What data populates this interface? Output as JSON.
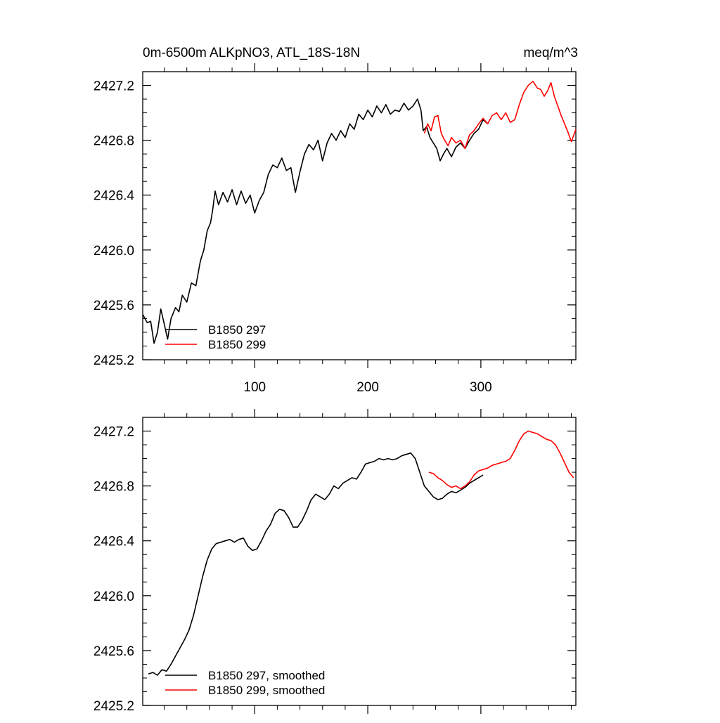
{
  "chart_data": [
    {
      "type": "line",
      "title": "0m-6500m ALKpNO3, ATL_18S-18N",
      "units": "meq/m^3",
      "xlabel": "",
      "ylabel": "",
      "xlim": [
        1,
        384
      ],
      "ylim": [
        2425.2,
        2427.3
      ],
      "x_ticks": [
        100,
        200,
        300
      ],
      "x_tick_labels": [
        "100",
        "200",
        "300"
      ],
      "y_ticks": [
        2425.2,
        2425.6,
        2426.0,
        2426.4,
        2426.8,
        2427.2
      ],
      "y_tick_labels": [
        "2425.2",
        "2425.6",
        "2426.0",
        "2426.4",
        "2426.8",
        "2427.2"
      ],
      "legend_position": "bottom-left",
      "series": [
        {
          "name": "B1850 297",
          "color": "#000000",
          "points": [
            [
              1,
              2425.53
            ],
            [
              5,
              2425.47
            ],
            [
              8,
              2425.48
            ],
            [
              11,
              2425.32
            ],
            [
              14,
              2425.4
            ],
            [
              17,
              2425.57
            ],
            [
              20,
              2425.46
            ],
            [
              23,
              2425.35
            ],
            [
              26,
              2425.5
            ],
            [
              30,
              2425.58
            ],
            [
              33,
              2425.55
            ],
            [
              36,
              2425.67
            ],
            [
              40,
              2425.62
            ],
            [
              44,
              2425.76
            ],
            [
              48,
              2425.74
            ],
            [
              52,
              2425.92
            ],
            [
              55,
              2426.0
            ],
            [
              58,
              2426.14
            ],
            [
              61,
              2426.2
            ],
            [
              63,
              2426.3
            ],
            [
              65,
              2426.43
            ],
            [
              68,
              2426.33
            ],
            [
              72,
              2426.42
            ],
            [
              76,
              2426.35
            ],
            [
              80,
              2426.44
            ],
            [
              84,
              2426.33
            ],
            [
              88,
              2426.43
            ],
            [
              92,
              2426.34
            ],
            [
              96,
              2426.4
            ],
            [
              100,
              2426.27
            ],
            [
              104,
              2426.36
            ],
            [
              108,
              2426.42
            ],
            [
              112,
              2426.55
            ],
            [
              116,
              2426.62
            ],
            [
              120,
              2426.6
            ],
            [
              124,
              2426.67
            ],
            [
              128,
              2426.58
            ],
            [
              132,
              2426.6
            ],
            [
              136,
              2426.42
            ],
            [
              140,
              2426.57
            ],
            [
              144,
              2426.7
            ],
            [
              148,
              2426.77
            ],
            [
              152,
              2426.73
            ],
            [
              156,
              2426.8
            ],
            [
              160,
              2426.65
            ],
            [
              164,
              2426.78
            ],
            [
              168,
              2426.85
            ],
            [
              172,
              2426.8
            ],
            [
              176,
              2426.87
            ],
            [
              180,
              2426.82
            ],
            [
              184,
              2426.92
            ],
            [
              188,
              2426.88
            ],
            [
              192,
              2426.99
            ],
            [
              196,
              2426.95
            ],
            [
              200,
              2427.02
            ],
            [
              204,
              2426.97
            ],
            [
              208,
              2427.05
            ],
            [
              212,
              2427.0
            ],
            [
              216,
              2427.06
            ],
            [
              220,
              2426.99
            ],
            [
              224,
              2427.02
            ],
            [
              228,
              2427.01
            ],
            [
              232,
              2427.07
            ],
            [
              236,
              2427.02
            ],
            [
              240,
              2427.05
            ],
            [
              244,
              2427.1
            ],
            [
              247,
              2427.02
            ],
            [
              249,
              2426.87
            ],
            [
              252,
              2426.9
            ],
            [
              255,
              2426.82
            ],
            [
              258,
              2426.78
            ],
            [
              261,
              2426.74
            ],
            [
              264,
              2426.65
            ],
            [
              267,
              2426.7
            ],
            [
              270,
              2426.74
            ],
            [
              274,
              2426.68
            ],
            [
              278,
              2426.75
            ],
            [
              282,
              2426.78
            ],
            [
              286,
              2426.74
            ],
            [
              290,
              2426.8
            ],
            [
              294,
              2426.85
            ],
            [
              298,
              2426.88
            ],
            [
              302,
              2426.95
            ],
            [
              306,
              2426.92
            ]
          ]
        },
        {
          "name": "B1850 299",
          "color": "#ff0000",
          "points": [
            [
              250,
              2426.85
            ],
            [
              253,
              2426.92
            ],
            [
              256,
              2426.87
            ],
            [
              259,
              2426.97
            ],
            [
              262,
              2426.98
            ],
            [
              265,
              2426.85
            ],
            [
              268,
              2426.8
            ],
            [
              271,
              2426.76
            ],
            [
              274,
              2426.82
            ],
            [
              278,
              2426.78
            ],
            [
              282,
              2426.8
            ],
            [
              286,
              2426.74
            ],
            [
              290,
              2426.84
            ],
            [
              294,
              2426.87
            ],
            [
              298,
              2426.92
            ],
            [
              302,
              2426.96
            ],
            [
              306,
              2426.92
            ],
            [
              310,
              2426.98
            ],
            [
              314,
              2427.0
            ],
            [
              318,
              2426.95
            ],
            [
              322,
              2427.0
            ],
            [
              326,
              2426.93
            ],
            [
              330,
              2426.95
            ],
            [
              334,
              2427.06
            ],
            [
              338,
              2427.15
            ],
            [
              342,
              2427.2
            ],
            [
              346,
              2427.23
            ],
            [
              350,
              2427.18
            ],
            [
              353,
              2427.17
            ],
            [
              356,
              2427.12
            ],
            [
              359,
              2427.16
            ],
            [
              362,
              2427.22
            ],
            [
              365,
              2427.12
            ],
            [
              368,
              2427.05
            ],
            [
              371,
              2426.98
            ],
            [
              374,
              2426.92
            ],
            [
              377,
              2426.86
            ],
            [
              380,
              2426.79
            ],
            [
              384,
              2426.88
            ]
          ]
        }
      ]
    },
    {
      "type": "line",
      "title": "",
      "xlabel": "",
      "ylabel": "",
      "xlim": [
        1,
        384
      ],
      "ylim": [
        2425.2,
        2427.3
      ],
      "x_ticks": [
        100,
        200,
        300
      ],
      "x_tick_labels": [],
      "y_ticks": [
        2425.2,
        2425.6,
        2426.0,
        2426.4,
        2426.8,
        2427.2
      ],
      "y_tick_labels": [
        "2425.2",
        "2425.6",
        "2426.0",
        "2426.4",
        "2426.8",
        "2427.2"
      ],
      "legend_position": "bottom-left",
      "series": [
        {
          "name": "B1850 297, smoothed",
          "color": "#000000",
          "points": [
            [
              6,
              2425.43
            ],
            [
              10,
              2425.44
            ],
            [
              14,
              2425.42
            ],
            [
              18,
              2425.46
            ],
            [
              22,
              2425.45
            ],
            [
              26,
              2425.5
            ],
            [
              30,
              2425.56
            ],
            [
              34,
              2425.62
            ],
            [
              38,
              2425.68
            ],
            [
              42,
              2425.75
            ],
            [
              46,
              2425.86
            ],
            [
              50,
              2426.0
            ],
            [
              54,
              2426.14
            ],
            [
              58,
              2426.26
            ],
            [
              62,
              2426.34
            ],
            [
              66,
              2426.38
            ],
            [
              70,
              2426.39
            ],
            [
              74,
              2426.4
            ],
            [
              78,
              2426.41
            ],
            [
              82,
              2426.39
            ],
            [
              86,
              2426.41
            ],
            [
              90,
              2426.42
            ],
            [
              94,
              2426.36
            ],
            [
              98,
              2426.33
            ],
            [
              102,
              2426.34
            ],
            [
              106,
              2426.4
            ],
            [
              110,
              2426.47
            ],
            [
              114,
              2426.52
            ],
            [
              118,
              2426.6
            ],
            [
              122,
              2426.63
            ],
            [
              126,
              2426.62
            ],
            [
              130,
              2426.57
            ],
            [
              134,
              2426.5
            ],
            [
              138,
              2426.5
            ],
            [
              142,
              2426.55
            ],
            [
              146,
              2426.62
            ],
            [
              150,
              2426.7
            ],
            [
              154,
              2426.74
            ],
            [
              158,
              2426.72
            ],
            [
              162,
              2426.7
            ],
            [
              166,
              2426.74
            ],
            [
              170,
              2426.8
            ],
            [
              174,
              2426.78
            ],
            [
              178,
              2426.82
            ],
            [
              182,
              2426.84
            ],
            [
              186,
              2426.86
            ],
            [
              190,
              2426.85
            ],
            [
              194,
              2426.9
            ],
            [
              198,
              2426.96
            ],
            [
              202,
              2426.97
            ],
            [
              206,
              2426.98
            ],
            [
              210,
              2427.0
            ],
            [
              214,
              2426.99
            ],
            [
              218,
              2427.0
            ],
            [
              222,
              2426.99
            ],
            [
              226,
              2427.0
            ],
            [
              230,
              2427.02
            ],
            [
              234,
              2427.03
            ],
            [
              238,
              2427.04
            ],
            [
              242,
              2427.0
            ],
            [
              246,
              2426.9
            ],
            [
              250,
              2426.8
            ],
            [
              254,
              2426.76
            ],
            [
              258,
              2426.72
            ],
            [
              262,
              2426.7
            ],
            [
              266,
              2426.71
            ],
            [
              270,
              2426.74
            ],
            [
              274,
              2426.76
            ],
            [
              278,
              2426.75
            ],
            [
              282,
              2426.77
            ],
            [
              286,
              2426.79
            ],
            [
              290,
              2426.82
            ],
            [
              294,
              2426.84
            ],
            [
              298,
              2426.86
            ],
            [
              302,
              2426.88
            ]
          ]
        },
        {
          "name": "B1850 299, smoothed",
          "color": "#ff0000",
          "points": [
            [
              254,
              2426.9
            ],
            [
              258,
              2426.89
            ],
            [
              262,
              2426.86
            ],
            [
              266,
              2426.84
            ],
            [
              270,
              2426.81
            ],
            [
              274,
              2426.79
            ],
            [
              278,
              2426.8
            ],
            [
              282,
              2426.78
            ],
            [
              286,
              2426.8
            ],
            [
              290,
              2426.83
            ],
            [
              294,
              2426.88
            ],
            [
              298,
              2426.91
            ],
            [
              302,
              2426.92
            ],
            [
              306,
              2426.93
            ],
            [
              310,
              2426.95
            ],
            [
              314,
              2426.96
            ],
            [
              318,
              2426.97
            ],
            [
              322,
              2426.98
            ],
            [
              326,
              2427.0
            ],
            [
              330,
              2427.06
            ],
            [
              334,
              2427.13
            ],
            [
              338,
              2427.18
            ],
            [
              342,
              2427.2
            ],
            [
              346,
              2427.19
            ],
            [
              350,
              2427.18
            ],
            [
              354,
              2427.16
            ],
            [
              358,
              2427.14
            ],
            [
              362,
              2427.13
            ],
            [
              366,
              2427.1
            ],
            [
              370,
              2427.04
            ],
            [
              374,
              2426.97
            ],
            [
              378,
              2426.9
            ],
            [
              382,
              2426.86
            ]
          ]
        }
      ]
    }
  ]
}
